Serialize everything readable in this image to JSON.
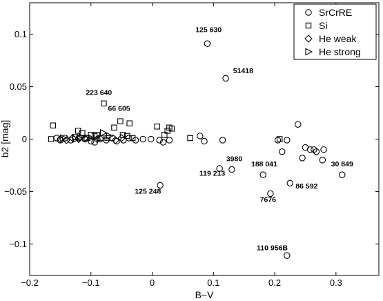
{
  "chart_data": {
    "type": "scatter",
    "xlabel": "B−V",
    "ylabel": "b2 [mag]",
    "xlim": [
      -0.2,
      0.37
    ],
    "ylim": [
      -0.13,
      0.13
    ],
    "xticks": [
      -0.2,
      -0.1,
      0,
      0.1,
      0.2,
      0.3
    ],
    "xtick_labels": [
      "−0.2",
      "−0.1",
      "0",
      "0.1",
      "0.2",
      "0.3"
    ],
    "yticks": [
      -0.1,
      -0.05,
      0,
      0.05,
      0.1
    ],
    "ytick_labels": [
      "−0.1",
      "−0.05",
      "0",
      "0.05",
      "0.1"
    ],
    "grid": false,
    "legend_position": "top-right",
    "series": [
      {
        "name": "SrCrRE",
        "marker": "circle",
        "points": [
          [
            -0.156,
            0.001
          ],
          [
            -0.15,
            -0.001
          ],
          [
            -0.142,
            0.001
          ],
          [
            -0.133,
            -0.001
          ],
          [
            -0.12,
            0.001
          ],
          [
            -0.11,
            0.0
          ],
          [
            -0.1,
            -0.002
          ],
          [
            -0.094,
            -0.003
          ],
          [
            -0.085,
            0.0
          ],
          [
            -0.075,
            -0.001
          ],
          [
            -0.065,
            0.001
          ],
          [
            -0.058,
            -0.002
          ],
          [
            -0.047,
            -0.001
          ],
          [
            -0.038,
            0.001
          ],
          [
            -0.027,
            -0.001
          ],
          [
            -0.015,
            0.0
          ],
          [
            -0.002,
            0.0
          ],
          [
            0.012,
            -0.001
          ],
          [
            0.018,
            -0.003
          ],
          [
            0.028,
            -0.001
          ],
          [
            0.078,
            0.003
          ],
          [
            0.085,
            -0.002
          ],
          [
            0.09,
            0.091
          ],
          [
            0.11,
            -0.028
          ],
          [
            0.115,
            -0.001
          ],
          [
            0.12,
            0.058
          ],
          [
            0.13,
            -0.029
          ],
          [
            0.181,
            -0.034
          ],
          [
            0.193,
            -0.052
          ],
          [
            0.205,
            -0.001
          ],
          [
            0.212,
            -0.012
          ],
          [
            0.22,
            -0.001
          ],
          [
            0.22,
            -0.111
          ],
          [
            0.225,
            -0.042
          ],
          [
            0.238,
            0.014
          ],
          [
            0.245,
            -0.018
          ],
          [
            0.25,
            -0.008
          ],
          [
            0.258,
            -0.01
          ],
          [
            0.264,
            -0.01
          ],
          [
            0.268,
            -0.012
          ],
          [
            0.278,
            -0.02
          ],
          [
            0.28,
            -0.01
          ],
          [
            0.31,
            -0.034
          ],
          [
            0.013,
            -0.044
          ]
        ]
      },
      {
        "name": "Si",
        "marker": "square",
        "points": [
          [
            -0.165,
            0.0
          ],
          [
            -0.162,
            0.013
          ],
          [
            -0.126,
            0.002
          ],
          [
            -0.121,
            0.008
          ],
          [
            -0.114,
            0.006
          ],
          [
            -0.107,
            0.001
          ],
          [
            -0.1,
            0.004
          ],
          [
            -0.094,
            0.003
          ],
          [
            -0.09,
            0.004
          ],
          [
            -0.084,
            0.001
          ],
          [
            -0.079,
            0.034
          ],
          [
            -0.073,
            0.001
          ],
          [
            -0.062,
            0.011
          ],
          [
            -0.052,
            0.017
          ],
          [
            -0.048,
            0.004
          ],
          [
            -0.041,
            0.003
          ],
          [
            -0.037,
            0.015
          ],
          [
            -0.032,
            0.001
          ],
          [
            0.008,
            0.012
          ],
          [
            0.02,
            0.004
          ],
          [
            0.025,
            0.008
          ],
          [
            0.028,
            0.011
          ],
          [
            0.032,
            0.01
          ],
          [
            0.062,
            0.001
          ],
          [
            0.208,
            0.0
          ]
        ]
      },
      {
        "name": "He weak",
        "marker": "diamond",
        "points": [
          [
            -0.15,
            0.0
          ],
          [
            -0.14,
            -0.001
          ],
          [
            -0.13,
            0.001
          ],
          [
            -0.12,
            0.0
          ],
          [
            -0.11,
            0.001
          ],
          [
            -0.09,
            0.0
          ],
          [
            -0.06,
            -0.001
          ],
          [
            -0.05,
            0.001
          ]
        ]
      },
      {
        "name": "He strong",
        "marker": "triangle-right",
        "points": [
          [
            -0.145,
            0.001
          ],
          [
            -0.125,
            0.0
          ],
          [
            -0.115,
            0.002
          ],
          [
            -0.1,
            0.001
          ],
          [
            -0.08,
            0.006
          ],
          [
            -0.07,
            0.003
          ]
        ]
      }
    ],
    "annotations": [
      {
        "text": "125 630",
        "x": 0.09,
        "y": 0.091,
        "dx": 0.002,
        "dy": 0.011,
        "anchor": "middle"
      },
      {
        "text": "51418",
        "x": 0.12,
        "y": 0.058,
        "dx": 0.012,
        "dy": 0.005,
        "anchor": "start"
      },
      {
        "text": "223 640",
        "x": -0.079,
        "y": 0.034,
        "dx": -0.008,
        "dy": 0.008,
        "anchor": "middle"
      },
      {
        "text": "66 605",
        "x": -0.052,
        "y": 0.017,
        "dx": -0.002,
        "dy": 0.01,
        "anchor": "middle"
      },
      {
        "text": "3980",
        "x": 0.13,
        "y": -0.029,
        "dx": 0.004,
        "dy": 0.008,
        "anchor": "middle"
      },
      {
        "text": "119 213",
        "x": 0.11,
        "y": -0.028,
        "dx": -0.012,
        "dy": -0.007,
        "anchor": "middle"
      },
      {
        "text": "188 041",
        "x": 0.181,
        "y": -0.034,
        "dx": 0.002,
        "dy": 0.008,
        "anchor": "middle"
      },
      {
        "text": "86 592",
        "x": 0.225,
        "y": -0.042,
        "dx": 0.009,
        "dy": -0.005,
        "anchor": "start"
      },
      {
        "text": "7676",
        "x": 0.193,
        "y": -0.052,
        "dx": -0.004,
        "dy": -0.008,
        "anchor": "middle"
      },
      {
        "text": "30 849",
        "x": 0.31,
        "y": -0.034,
        "dx": 0.0,
        "dy": 0.008,
        "anchor": "middle"
      },
      {
        "text": "125 248",
        "x": 0.013,
        "y": -0.044,
        "dx": -0.02,
        "dy": -0.008,
        "anchor": "middle"
      },
      {
        "text": "110 956B",
        "x": 0.22,
        "y": -0.111,
        "dx": -0.024,
        "dy": 0.005,
        "anchor": "middle"
      }
    ]
  }
}
